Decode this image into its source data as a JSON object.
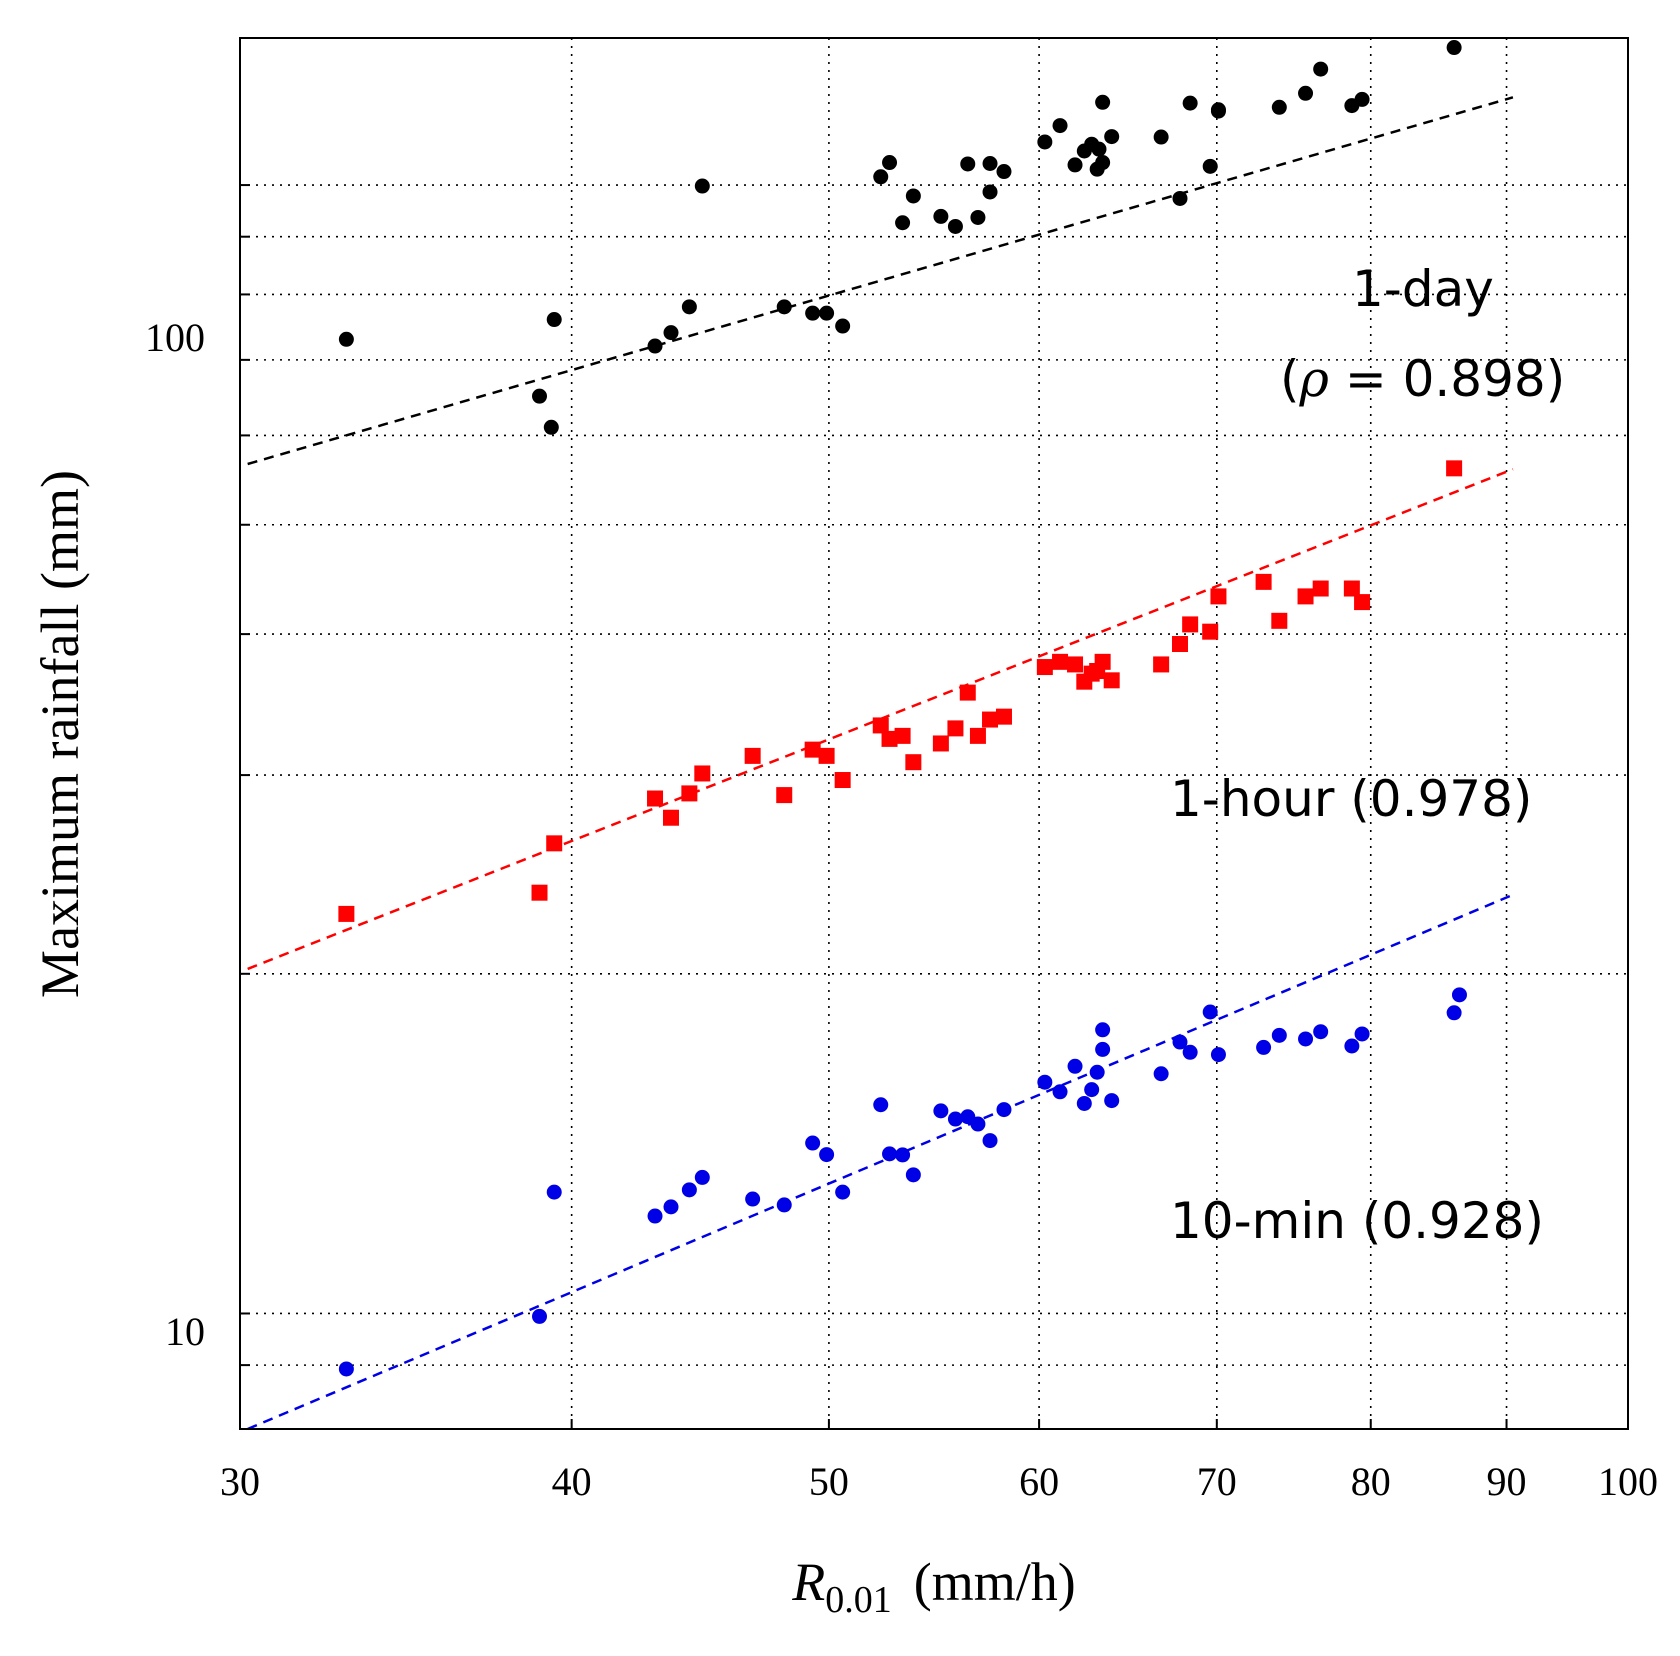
{
  "chart_data": {
    "type": "scatter",
    "title": "",
    "xlabel": {
      "symbol": "R",
      "subscript": "0.01",
      "unit": "(mm/h)"
    },
    "ylabel": "Maximum rainfall  (mm)",
    "xscale": "log",
    "yscale": "log",
    "xlim": [
      30,
      100
    ],
    "ylim": [
      7.9,
      135
    ],
    "grid": true,
    "xticks": [
      30,
      40,
      50,
      60,
      70,
      80,
      90,
      100
    ],
    "xtick_labels": [
      "30",
      "40",
      "50",
      "60",
      "70",
      "80",
      "90",
      "100"
    ],
    "yticks_labeled": [
      10,
      100
    ],
    "ytick_labels": [
      "10",
      "100"
    ],
    "yticks_minor": [
      9,
      20,
      30,
      40,
      50,
      60,
      70,
      80,
      90
    ],
    "series": [
      {
        "name": "1-day",
        "label_line1": "1-day",
        "label_line2_open": "(",
        "label_symbol": "ρ",
        "label_line2_rest": " = 0.898)",
        "rho": 0.898,
        "color": "#000000",
        "marker": "circle",
        "fit": {
          "x": [
            30.2,
            90.5
          ],
          "y": [
            56.6,
            119.6
          ]
        },
        "points": [
          [
            32.9,
            73
          ],
          [
            38.9,
            65
          ],
          [
            39.3,
            61
          ],
          [
            39.4,
            76
          ],
          [
            43,
            72
          ],
          [
            43.6,
            74
          ],
          [
            44.3,
            78
          ],
          [
            44.8,
            99.8
          ],
          [
            48.1,
            78
          ],
          [
            49.3,
            77
          ],
          [
            49.9,
            77
          ],
          [
            50.6,
            75
          ],
          [
            52.3,
            101.7
          ],
          [
            52.7,
            104.7
          ],
          [
            53.3,
            92.6
          ],
          [
            53.8,
            97.8
          ],
          [
            55.1,
            93.8
          ],
          [
            55.8,
            91.9
          ],
          [
            56.4,
            104.4
          ],
          [
            56.9,
            93.6
          ],
          [
            57.5,
            98.6
          ],
          [
            57.5,
            104.5
          ],
          [
            58.2,
            102.8
          ],
          [
            60.3,
            109.2
          ],
          [
            61.1,
            112.9
          ],
          [
            61.9,
            104.2
          ],
          [
            62.4,
            107.2
          ],
          [
            62.8,
            108.7
          ],
          [
            63.1,
            103.3
          ],
          [
            63.2,
            107.6
          ],
          [
            63.4,
            104.7
          ],
          [
            63.4,
            118.4
          ],
          [
            63.9,
            110.4
          ],
          [
            66.7,
            110.3
          ],
          [
            67.8,
            97.3
          ],
          [
            68.4,
            118.2
          ],
          [
            69.6,
            103.9
          ],
          [
            70.1,
            116.3
          ],
          [
            70.1,
            116.6
          ],
          [
            73.9,
            117.2
          ],
          [
            75.6,
            120.6
          ],
          [
            76.6,
            126.7
          ],
          [
            78.7,
            117.6
          ],
          [
            79.4,
            119.1
          ],
          [
            86,
            132.4
          ]
        ]
      },
      {
        "name": "1-hour",
        "label": "1-hour (0.978)",
        "rho": 0.978,
        "color": "#ff0000",
        "marker": "square",
        "fit": {
          "x": [
            30.2,
            90.5
          ],
          "y": [
            20.2,
            56
          ]
        },
        "points": [
          [
            32.9,
            22.6
          ],
          [
            38.9,
            23.6
          ],
          [
            39.4,
            26.1
          ],
          [
            43,
            28.6
          ],
          [
            43.6,
            27.5
          ],
          [
            44.3,
            28.9
          ],
          [
            44.8,
            30.1
          ],
          [
            46.8,
            31.2
          ],
          [
            48.1,
            28.8
          ],
          [
            49.3,
            31.6
          ],
          [
            49.9,
            31.2
          ],
          [
            50.6,
            29.7
          ],
          [
            52.3,
            33.2
          ],
          [
            52.7,
            32.3
          ],
          [
            53.3,
            32.5
          ],
          [
            53.8,
            30.8
          ],
          [
            55.1,
            32
          ],
          [
            55.8,
            33
          ],
          [
            56.4,
            35.5
          ],
          [
            56.9,
            32.5
          ],
          [
            57.5,
            33.6
          ],
          [
            58.2,
            33.8
          ],
          [
            60.3,
            37.4
          ],
          [
            61.1,
            37.8
          ],
          [
            61.9,
            37.6
          ],
          [
            62.4,
            36.3
          ],
          [
            62.8,
            36.9
          ],
          [
            63.1,
            37.1
          ],
          [
            63.4,
            37.8
          ],
          [
            63.9,
            36.4
          ],
          [
            66.7,
            37.6
          ],
          [
            67.8,
            39.2
          ],
          [
            68.4,
            40.8
          ],
          [
            69.6,
            40.2
          ],
          [
            70.1,
            43.2
          ],
          [
            72.9,
            44.5
          ],
          [
            73.9,
            41.1
          ],
          [
            75.6,
            43.2
          ],
          [
            76.6,
            43.9
          ],
          [
            78.7,
            43.9
          ],
          [
            79.4,
            42.7
          ],
          [
            86,
            56.1
          ]
        ]
      },
      {
        "name": "10-min",
        "label": "10-min (0.928)",
        "rho": 0.928,
        "color": "#0000e6",
        "marker": "circle",
        "fit": {
          "x": [
            30.2,
            90.5
          ],
          "y": [
            7.9,
            23.5
          ]
        },
        "points": [
          [
            32.9,
            8.93
          ],
          [
            38.9,
            9.94
          ],
          [
            39.4,
            12.81
          ],
          [
            43,
            12.2
          ],
          [
            43.6,
            12.43
          ],
          [
            44.3,
            12.87
          ],
          [
            44.8,
            13.2
          ],
          [
            46.8,
            12.63
          ],
          [
            48.1,
            12.48
          ],
          [
            49.3,
            14.16
          ],
          [
            49.9,
            13.83
          ],
          [
            50.6,
            12.81
          ],
          [
            52.3,
            15.31
          ],
          [
            52.7,
            13.85
          ],
          [
            53.3,
            13.82
          ],
          [
            53.8,
            13.27
          ],
          [
            55.1,
            15.12
          ],
          [
            55.8,
            14.87
          ],
          [
            56.4,
            14.94
          ],
          [
            56.9,
            14.72
          ],
          [
            57.5,
            14.23
          ],
          [
            58.2,
            15.16
          ],
          [
            60.3,
            16.03
          ],
          [
            61.1,
            15.72
          ],
          [
            61.9,
            16.56
          ],
          [
            62.4,
            15.35
          ],
          [
            62.8,
            15.79
          ],
          [
            63.1,
            16.36
          ],
          [
            63.4,
            17.14
          ],
          [
            63.4,
            17.84
          ],
          [
            63.9,
            15.44
          ],
          [
            66.7,
            16.31
          ],
          [
            67.8,
            17.4
          ],
          [
            68.4,
            17.04
          ],
          [
            69.6,
            18.5
          ],
          [
            70.1,
            16.96
          ],
          [
            72.9,
            17.21
          ],
          [
            73.9,
            17.64
          ],
          [
            75.6,
            17.51
          ],
          [
            76.6,
            17.77
          ],
          [
            78.7,
            17.26
          ],
          [
            79.4,
            17.69
          ],
          [
            86,
            18.47
          ],
          [
            86.4,
            19.16
          ]
        ]
      }
    ]
  }
}
